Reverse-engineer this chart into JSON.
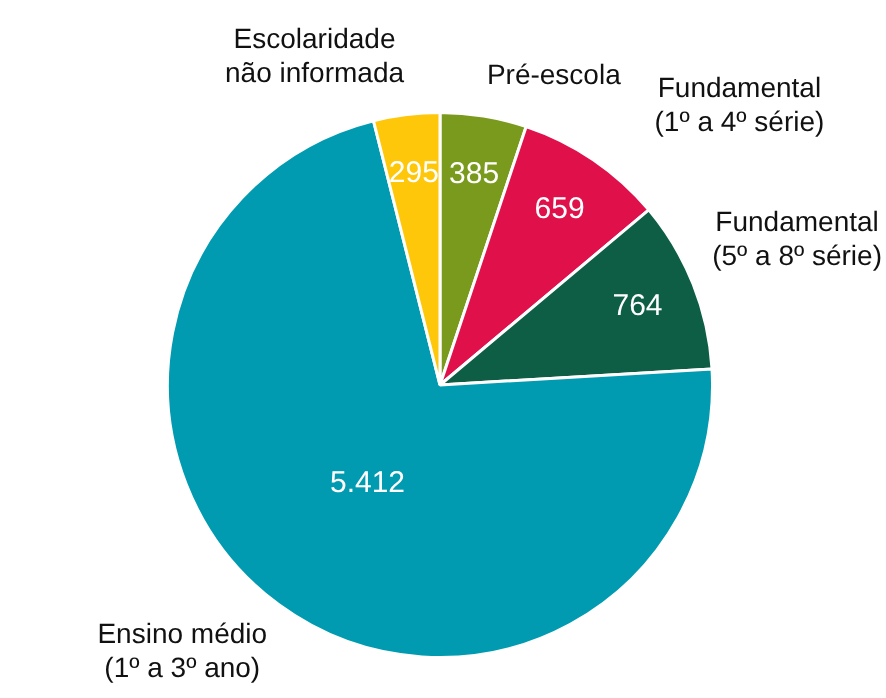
{
  "chart_data": {
    "type": "pie",
    "categories": [
      "Pré-escola",
      "Fundamental (1º a 4º série)",
      "Fundamental (5º a 8º série)",
      "Ensino médio (1º a 3º ano)",
      "Escolaridade não informada"
    ],
    "values": [
      385,
      659,
      764,
      5412,
      295
    ],
    "value_labels": [
      "385",
      "659",
      "764",
      "5.412",
      "295"
    ],
    "colors": [
      "#7a9a1e",
      "#e0104a",
      "#0d5e45",
      "#009bb0",
      "#ffc70a"
    ],
    "legend": false
  }
}
